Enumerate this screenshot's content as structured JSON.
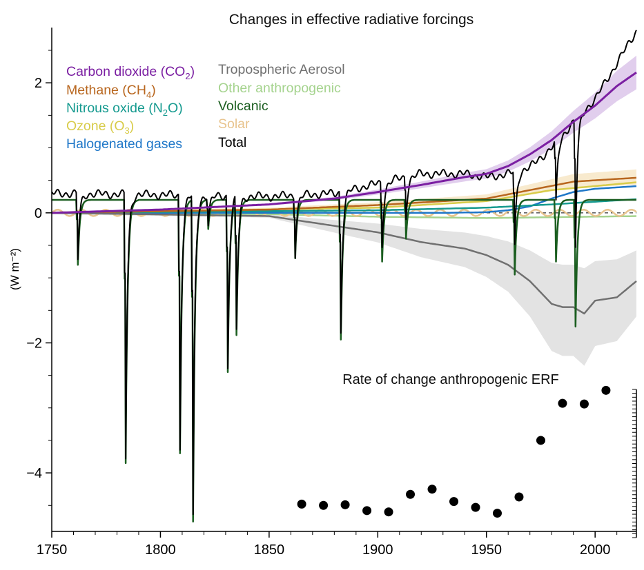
{
  "chart_data": {
    "type": "line",
    "title": "Changes in effective radiative forcings",
    "ylabel": "(W m⁻²)",
    "xlabel": "",
    "xlim": [
      1750,
      2019
    ],
    "ylim": [
      -4.9,
      2.85
    ],
    "x_ticks": [
      1750,
      1800,
      1850,
      1900,
      1950,
      2000
    ],
    "y_ticks": [
      2,
      0,
      -2,
      -4
    ],
    "zero_line": "dashed",
    "legend_position": "top-left, two columns",
    "legend": [
      {
        "label": "Carbon dioxide (CO",
        "sub": "2",
        "tail": ")",
        "color": "#7b1fa2"
      },
      {
        "label": "Methane (CH",
        "sub": "4",
        "tail": ")",
        "color": "#b8661e"
      },
      {
        "label": "Nitrous oxide (N",
        "sub": "2",
        "tail": "O)",
        "color": "#159a8f"
      },
      {
        "label": "Ozone (O",
        "sub": "3",
        "tail": ")",
        "color": "#d8cc4a"
      },
      {
        "label": "Halogenated gases",
        "sub": "",
        "tail": "",
        "color": "#1f77c8"
      },
      {
        "label": "Tropospheric Aerosol",
        "sub": "",
        "tail": "",
        "color": "#707070"
      },
      {
        "label": "Other anthropogenic",
        "sub": "",
        "tail": "",
        "color": "#a5d38e"
      },
      {
        "label": "Volcanic",
        "sub": "",
        "tail": "",
        "color": "#1b5e20"
      },
      {
        "label": "Solar",
        "sub": "",
        "tail": "",
        "color": "#e8c48e"
      },
      {
        "label": "Total",
        "sub": "",
        "tail": "",
        "color": "#000000"
      }
    ],
    "volcanic_baseline": 0.2,
    "volcanic_eruptions": [
      {
        "year": 1762,
        "depth": -0.8
      },
      {
        "year": 1784,
        "depth": -3.85
      },
      {
        "year": 1809,
        "depth": -3.7
      },
      {
        "year": 1815,
        "depth": -4.75
      },
      {
        "year": 1822,
        "depth": -0.25
      },
      {
        "year": 1831,
        "depth": -2.45
      },
      {
        "year": 1835,
        "depth": -1.85
      },
      {
        "year": 1862,
        "depth": -0.7
      },
      {
        "year": 1883,
        "depth": -1.95
      },
      {
        "year": 1902,
        "depth": -0.75
      },
      {
        "year": 1913,
        "depth": -0.4
      },
      {
        "year": 1963,
        "depth": -0.95
      },
      {
        "year": 1982,
        "depth": -0.75
      },
      {
        "year": 1991,
        "depth": -1.75
      }
    ],
    "series": [
      {
        "name": "Carbon dioxide (CO2)",
        "color": "#7b1fa2",
        "x": [
          1750,
          1800,
          1850,
          1880,
          1900,
          1920,
          1940,
          1950,
          1960,
          1970,
          1980,
          1990,
          2000,
          2010,
          2019
        ],
        "y": [
          0.0,
          0.05,
          0.13,
          0.22,
          0.32,
          0.43,
          0.55,
          0.6,
          0.72,
          0.9,
          1.12,
          1.4,
          1.65,
          1.95,
          2.16
        ]
      },
      {
        "name": "Methane (CH4)",
        "color": "#b8661e",
        "x": [
          1750,
          1850,
          1900,
          1950,
          1970,
          1990,
          2019
        ],
        "y": [
          0.0,
          0.05,
          0.12,
          0.22,
          0.35,
          0.48,
          0.54
        ]
      },
      {
        "name": "Nitrous oxide (N2O)",
        "color": "#159a8f",
        "x": [
          1750,
          1900,
          1950,
          1980,
          2019
        ],
        "y": [
          0.0,
          0.04,
          0.08,
          0.13,
          0.21
        ]
      },
      {
        "name": "Ozone (O3)",
        "color": "#d8cc4a",
        "x": [
          1750,
          1900,
          1950,
          1980,
          2019
        ],
        "y": [
          0.0,
          0.08,
          0.18,
          0.35,
          0.47
        ]
      },
      {
        "name": "Halogenated gases",
        "color": "#1f77c8",
        "x": [
          1750,
          1930,
          1950,
          1960,
          1970,
          1980,
          1990,
          2000,
          2019
        ],
        "y": [
          0.0,
          0.0,
          0.01,
          0.04,
          0.1,
          0.22,
          0.32,
          0.37,
          0.41
        ]
      },
      {
        "name": "Tropospheric Aerosol",
        "color": "#707070",
        "x": [
          1750,
          1850,
          1870,
          1900,
          1920,
          1940,
          1950,
          1960,
          1970,
          1980,
          1985,
          1990,
          1995,
          2000,
          2010,
          2019
        ],
        "y": [
          0.0,
          -0.05,
          -0.15,
          -0.3,
          -0.45,
          -0.55,
          -0.65,
          -0.8,
          -1.05,
          -1.4,
          -1.45,
          -1.45,
          -1.55,
          -1.35,
          -1.3,
          -1.05
        ]
      },
      {
        "name": "Other anthropogenic",
        "color": "#a5d38e",
        "x": [
          1750,
          1850,
          1900,
          1950,
          2019
        ],
        "y": [
          0.0,
          -0.02,
          -0.06,
          -0.08,
          -0.05
        ]
      },
      {
        "name": "Solar",
        "color": "#e8c48e",
        "x": [
          1750,
          2019
        ],
        "y": [
          0.0,
          0.0
        ],
        "cycle_amplitude": 0.05
      },
      {
        "name": "Total",
        "color": "#000000",
        "x": [
          1750,
          1850,
          1880,
          1900,
          1920,
          1940,
          1950,
          1960,
          1970,
          1980,
          1990,
          2000,
          2010,
          2019
        ],
        "y": [
          0.3,
          0.25,
          0.3,
          0.45,
          0.6,
          0.6,
          0.55,
          0.6,
          0.7,
          1.0,
          1.4,
          1.75,
          2.3,
          2.8
        ]
      }
    ],
    "inset": {
      "title": "Rate of change anthropogenic ERF",
      "x": [
        1865,
        1875,
        1885,
        1895,
        1905,
        1915,
        1925,
        1935,
        1945,
        1955,
        1965,
        1975,
        1985,
        1995,
        2005
      ],
      "y": [
        -4.48,
        -4.5,
        -4.49,
        -4.58,
        -4.6,
        -4.33,
        -4.25,
        -4.44,
        -4.53,
        -4.62,
        -4.37,
        -3.5,
        -2.93,
        -2.94,
        -2.73
      ]
    }
  }
}
